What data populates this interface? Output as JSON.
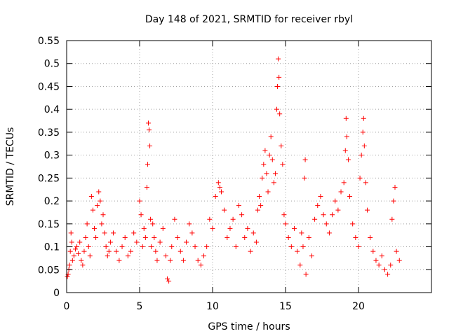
{
  "chart_data": {
    "type": "scatter",
    "title": "Day 148 of 2021, SRMTID for receiver rbyl",
    "xlabel": "GPS time / hours",
    "ylabel": "SRMTID / TECUs",
    "xlim": [
      0,
      25
    ],
    "ylim": [
      0,
      0.55
    ],
    "x_ticks": [
      0,
      5,
      10,
      15,
      20
    ],
    "y_ticks": [
      0,
      0.05,
      0.1,
      0.15,
      0.2,
      0.25,
      0.3,
      0.35,
      0.4,
      0.45,
      0.5,
      0.55
    ],
    "x_tick_labels": [
      "0",
      "5",
      "10",
      "15",
      "20"
    ],
    "y_tick_labels": [
      "0",
      "0.05",
      "0.1",
      "0.15",
      "0.2",
      "0.25",
      "0.3",
      "0.35",
      "0.4",
      "0.45",
      "0.5",
      "0.55"
    ],
    "grid": true,
    "marker": "+",
    "color": "#ff0000",
    "series": [
      {
        "name": "SRMTID",
        "points": [
          [
            0.05,
            0.035
          ],
          [
            0.1,
            0.04
          ],
          [
            0.15,
            0.05
          ],
          [
            0.2,
            0.06
          ],
          [
            0.25,
            0.09
          ],
          [
            0.3,
            0.13
          ],
          [
            0.35,
            0.11
          ],
          [
            0.4,
            0.07
          ],
          [
            0.5,
            0.08
          ],
          [
            0.6,
            0.095
          ],
          [
            0.7,
            0.1
          ],
          [
            0.8,
            0.085
          ],
          [
            0.9,
            0.11
          ],
          [
            1.0,
            0.07
          ],
          [
            1.1,
            0.06
          ],
          [
            1.2,
            0.09
          ],
          [
            1.3,
            0.12
          ],
          [
            1.4,
            0.15
          ],
          [
            1.5,
            0.1
          ],
          [
            1.6,
            0.08
          ],
          [
            1.7,
            0.21
          ],
          [
            1.8,
            0.18
          ],
          [
            1.9,
            0.14
          ],
          [
            2.0,
            0.12
          ],
          [
            2.1,
            0.19
          ],
          [
            2.2,
            0.22
          ],
          [
            2.3,
            0.2
          ],
          [
            2.4,
            0.15
          ],
          [
            2.5,
            0.17
          ],
          [
            2.6,
            0.13
          ],
          [
            2.7,
            0.1
          ],
          [
            2.8,
            0.08
          ],
          [
            2.9,
            0.09
          ],
          [
            3.0,
            0.11
          ],
          [
            3.2,
            0.13
          ],
          [
            3.4,
            0.09
          ],
          [
            3.6,
            0.07
          ],
          [
            3.8,
            0.1
          ],
          [
            4.0,
            0.12
          ],
          [
            4.2,
            0.08
          ],
          [
            4.4,
            0.09
          ],
          [
            4.6,
            0.13
          ],
          [
            4.8,
            0.11
          ],
          [
            5.0,
            0.2
          ],
          [
            5.1,
            0.17
          ],
          [
            5.2,
            0.1
          ],
          [
            5.3,
            0.14
          ],
          [
            5.4,
            0.12
          ],
          [
            5.5,
            0.23
          ],
          [
            5.55,
            0.28
          ],
          [
            5.6,
            0.37
          ],
          [
            5.65,
            0.355
          ],
          [
            5.7,
            0.32
          ],
          [
            5.75,
            0.16
          ],
          [
            5.8,
            0.1
          ],
          [
            5.9,
            0.15
          ],
          [
            6.0,
            0.12
          ],
          [
            6.1,
            0.09
          ],
          [
            6.2,
            0.07
          ],
          [
            6.4,
            0.11
          ],
          [
            6.6,
            0.14
          ],
          [
            6.8,
            0.08
          ],
          [
            6.9,
            0.03
          ],
          [
            7.0,
            0.025
          ],
          [
            7.1,
            0.07
          ],
          [
            7.2,
            0.1
          ],
          [
            7.4,
            0.16
          ],
          [
            7.6,
            0.12
          ],
          [
            7.8,
            0.09
          ],
          [
            8.0,
            0.07
          ],
          [
            8.2,
            0.11
          ],
          [
            8.4,
            0.15
          ],
          [
            8.6,
            0.13
          ],
          [
            8.8,
            0.1
          ],
          [
            9.0,
            0.07
          ],
          [
            9.2,
            0.06
          ],
          [
            9.4,
            0.08
          ],
          [
            9.6,
            0.1
          ],
          [
            9.8,
            0.16
          ],
          [
            10.0,
            0.14
          ],
          [
            10.2,
            0.21
          ],
          [
            10.4,
            0.24
          ],
          [
            10.5,
            0.23
          ],
          [
            10.6,
            0.22
          ],
          [
            10.8,
            0.18
          ],
          [
            11.0,
            0.12
          ],
          [
            11.2,
            0.14
          ],
          [
            11.4,
            0.16
          ],
          [
            11.6,
            0.1
          ],
          [
            11.8,
            0.19
          ],
          [
            12.0,
            0.17
          ],
          [
            12.2,
            0.12
          ],
          [
            12.4,
            0.14
          ],
          [
            12.6,
            0.09
          ],
          [
            12.8,
            0.13
          ],
          [
            13.0,
            0.11
          ],
          [
            13.1,
            0.18
          ],
          [
            13.2,
            0.21
          ],
          [
            13.3,
            0.19
          ],
          [
            13.4,
            0.25
          ],
          [
            13.5,
            0.28
          ],
          [
            13.6,
            0.31
          ],
          [
            13.7,
            0.26
          ],
          [
            13.8,
            0.22
          ],
          [
            13.9,
            0.3
          ],
          [
            14.0,
            0.34
          ],
          [
            14.1,
            0.29
          ],
          [
            14.2,
            0.24
          ],
          [
            14.3,
            0.26
          ],
          [
            14.4,
            0.4
          ],
          [
            14.45,
            0.45
          ],
          [
            14.5,
            0.51
          ],
          [
            14.55,
            0.47
          ],
          [
            14.6,
            0.39
          ],
          [
            14.7,
            0.32
          ],
          [
            14.8,
            0.28
          ],
          [
            14.9,
            0.17
          ],
          [
            15.0,
            0.15
          ],
          [
            15.2,
            0.12
          ],
          [
            15.4,
            0.1
          ],
          [
            15.6,
            0.14
          ],
          [
            15.8,
            0.09
          ],
          [
            16.0,
            0.06
          ],
          [
            16.1,
            0.13
          ],
          [
            16.2,
            0.1
          ],
          [
            16.3,
            0.25
          ],
          [
            16.35,
            0.29
          ],
          [
            16.4,
            0.04
          ],
          [
            16.6,
            0.12
          ],
          [
            16.8,
            0.08
          ],
          [
            17.0,
            0.16
          ],
          [
            17.2,
            0.19
          ],
          [
            17.4,
            0.21
          ],
          [
            17.6,
            0.17
          ],
          [
            17.8,
            0.15
          ],
          [
            18.0,
            0.13
          ],
          [
            18.2,
            0.17
          ],
          [
            18.4,
            0.2
          ],
          [
            18.6,
            0.18
          ],
          [
            18.8,
            0.22
          ],
          [
            19.0,
            0.24
          ],
          [
            19.1,
            0.31
          ],
          [
            19.15,
            0.38
          ],
          [
            19.2,
            0.34
          ],
          [
            19.3,
            0.29
          ],
          [
            19.4,
            0.21
          ],
          [
            19.6,
            0.15
          ],
          [
            19.8,
            0.12
          ],
          [
            20.0,
            0.1
          ],
          [
            20.1,
            0.25
          ],
          [
            20.2,
            0.3
          ],
          [
            20.3,
            0.35
          ],
          [
            20.35,
            0.38
          ],
          [
            20.4,
            0.32
          ],
          [
            20.5,
            0.24
          ],
          [
            20.6,
            0.18
          ],
          [
            20.8,
            0.12
          ],
          [
            21.0,
            0.09
          ],
          [
            21.2,
            0.07
          ],
          [
            21.4,
            0.06
          ],
          [
            21.6,
            0.08
          ],
          [
            21.8,
            0.05
          ],
          [
            22.0,
            0.04
          ],
          [
            22.2,
            0.06
          ],
          [
            22.3,
            0.16
          ],
          [
            22.4,
            0.2
          ],
          [
            22.5,
            0.23
          ],
          [
            22.6,
            0.09
          ],
          [
            22.8,
            0.07
          ]
        ]
      }
    ]
  }
}
